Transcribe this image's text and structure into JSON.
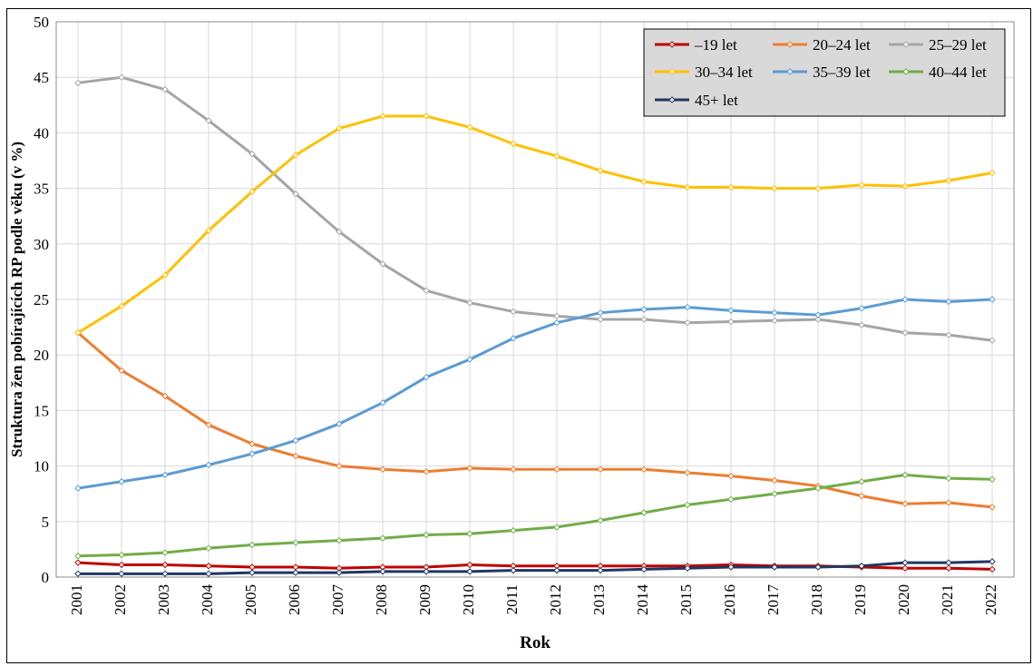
{
  "chart_data": {
    "type": "line",
    "title": "",
    "xlabel": "Rok",
    "ylabel": "Struktura žen pobírajících RP podle věku (v %)",
    "ylim": [
      0,
      50
    ],
    "yticks": [
      0,
      5,
      10,
      15,
      20,
      25,
      30,
      35,
      40,
      45,
      50
    ],
    "grid": true,
    "legend_position": "top-right",
    "categories": [
      "2001",
      "2002",
      "2003",
      "2004",
      "2005",
      "2006",
      "2007",
      "2008",
      "2009",
      "2010",
      "2011",
      "2012",
      "2013",
      "2014",
      "2015",
      "2016",
      "2017",
      "2018",
      "2019",
      "2020",
      "2021",
      "2022"
    ],
    "series": [
      {
        "name": "–19 let",
        "color": "#c00000",
        "values": [
          1.3,
          1.1,
          1.1,
          1.0,
          0.9,
          0.9,
          0.8,
          0.9,
          0.9,
          1.1,
          1.0,
          1.0,
          1.0,
          1.0,
          1.0,
          1.1,
          1.0,
          1.0,
          0.9,
          0.8,
          0.8,
          0.7
        ]
      },
      {
        "name": "20–24 let",
        "color": "#ed7d31",
        "values": [
          22.0,
          18.6,
          16.3,
          13.7,
          12.0,
          10.9,
          10.0,
          9.7,
          9.5,
          9.8,
          9.7,
          9.7,
          9.7,
          9.7,
          9.4,
          9.1,
          8.7,
          8.2,
          7.3,
          6.6,
          6.7,
          6.3
        ]
      },
      {
        "name": "25–29 let",
        "color": "#a5a5a5",
        "values": [
          44.5,
          45.0,
          43.9,
          41.1,
          38.1,
          34.5,
          31.1,
          28.2,
          25.8,
          24.7,
          23.9,
          23.5,
          23.2,
          23.2,
          22.9,
          23.0,
          23.1,
          23.2,
          22.7,
          22.0,
          21.8,
          21.3
        ]
      },
      {
        "name": "30–34 let",
        "color": "#ffc000",
        "values": [
          22.0,
          24.4,
          27.2,
          31.2,
          34.7,
          38.0,
          40.4,
          41.5,
          41.5,
          40.5,
          39.0,
          37.9,
          36.6,
          35.6,
          35.1,
          35.1,
          35.0,
          35.0,
          35.3,
          35.2,
          35.7,
          36.4
        ]
      },
      {
        "name": "35–39 let",
        "color": "#5b9bd5",
        "values": [
          8.0,
          8.6,
          9.2,
          10.1,
          11.1,
          12.3,
          13.8,
          15.7,
          18.0,
          19.6,
          21.5,
          22.9,
          23.8,
          24.1,
          24.3,
          24.0,
          23.8,
          23.6,
          24.2,
          25.0,
          24.8,
          25.0
        ]
      },
      {
        "name": "40–44 let",
        "color": "#70ad47",
        "values": [
          1.9,
          2.0,
          2.2,
          2.6,
          2.9,
          3.1,
          3.3,
          3.5,
          3.8,
          3.9,
          4.2,
          4.5,
          5.1,
          5.8,
          6.5,
          7.0,
          7.5,
          8.0,
          8.6,
          9.2,
          8.9,
          8.8
        ]
      },
      {
        "name": "45+ let",
        "color": "#1f3864",
        "values": [
          0.3,
          0.3,
          0.3,
          0.3,
          0.4,
          0.4,
          0.4,
          0.5,
          0.5,
          0.5,
          0.6,
          0.6,
          0.6,
          0.7,
          0.8,
          0.9,
          0.9,
          0.9,
          1.0,
          1.3,
          1.3,
          1.4
        ]
      }
    ]
  }
}
